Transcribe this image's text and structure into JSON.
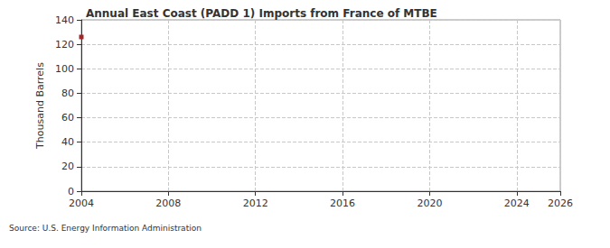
{
  "chart_data": {
    "type": "line",
    "title": "Annual East Coast (PADD 1) Imports from France of MTBE",
    "y_label": "Thousand Barrels",
    "source": "Source: U.S. Energy Information Administration",
    "x": [
      2004
    ],
    "values": [
      126
    ],
    "color": "#a0282a",
    "marker": "square",
    "xlim": [
      2004,
      2026
    ],
    "xticks": [
      2004,
      2008,
      2012,
      2016,
      2020,
      2024
    ],
    "ylim": [
      0,
      140
    ],
    "yticks": [
      0,
      20,
      40,
      60,
      80,
      100,
      120,
      140
    ],
    "grid": true
  }
}
